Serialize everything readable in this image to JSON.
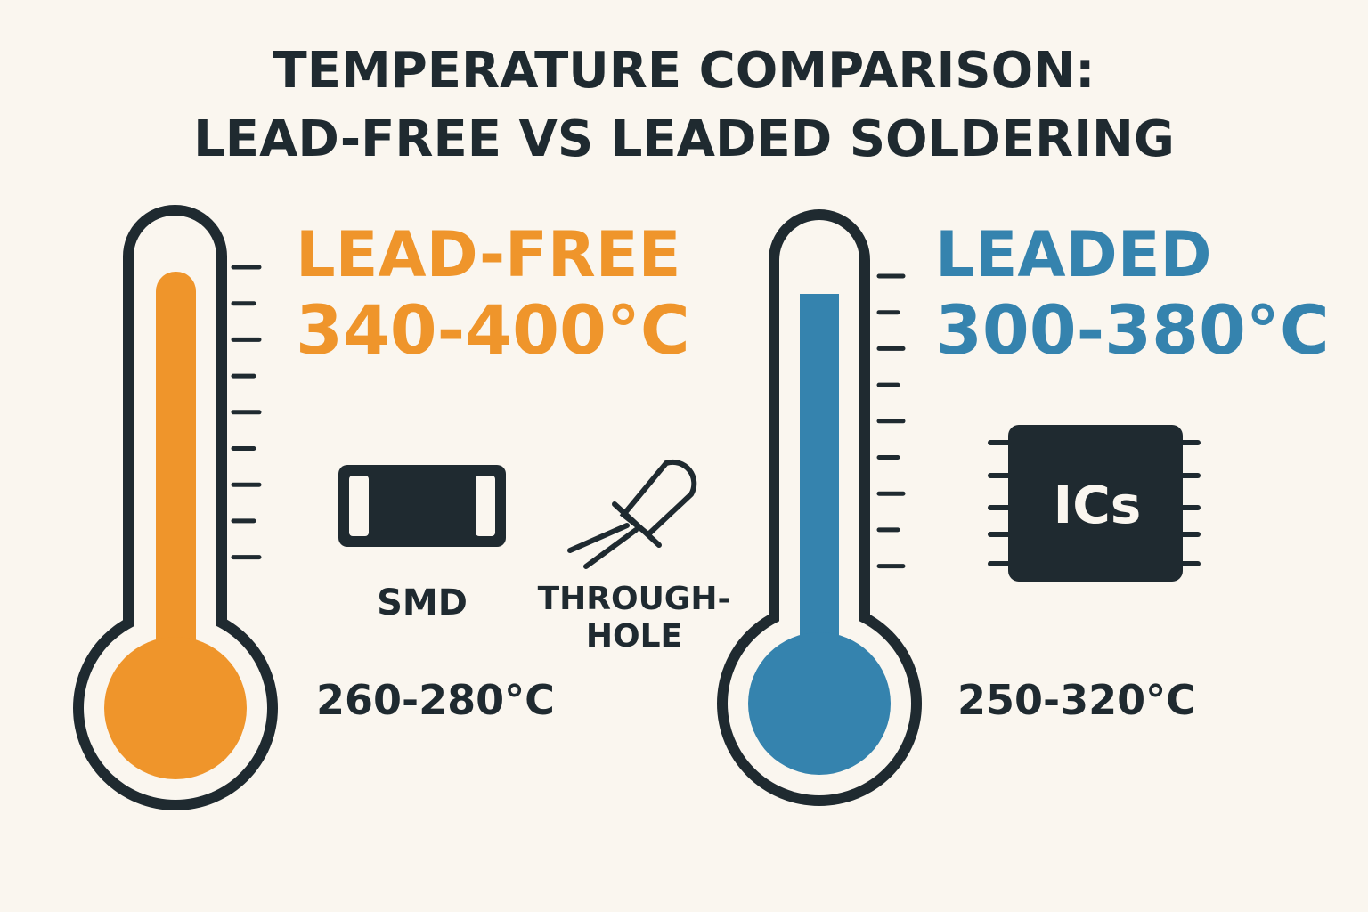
{
  "title": [
    "TEMPERATURE COMPARISON:",
    "LEAD-FREE VS LEADED SOLDERING"
  ],
  "panels": [
    {
      "label": "LEAD-FREE",
      "range": "340-400°C",
      "color": "#ef952b",
      "components": [
        {
          "label": [
            "SMD"
          ]
        },
        {
          "label": [
            "THROUGH-",
            "HOLE"
          ]
        }
      ],
      "component_range": "260-280°C"
    },
    {
      "label": "LEADED",
      "range": "300-380°C",
      "color": "#3583ae",
      "components": [
        {
          "label": [
            "ICs"
          ]
        }
      ],
      "component_range": "250-320°C"
    }
  ]
}
